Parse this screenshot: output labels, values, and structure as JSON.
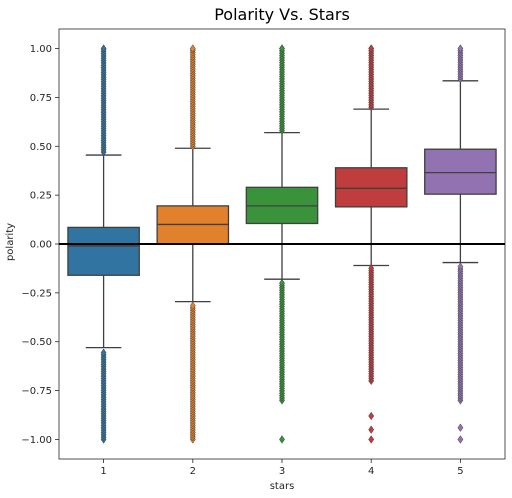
{
  "chart_data": {
    "type": "box",
    "title": "Polarity Vs. Stars",
    "xlabel": "stars",
    "ylabel": "polarity",
    "categories": [
      "1",
      "2",
      "3",
      "4",
      "5"
    ],
    "ylim": [
      -1.1,
      1.1
    ],
    "yticks": [
      -1.0,
      -0.75,
      -0.5,
      -0.25,
      0.0,
      0.25,
      0.5,
      0.75,
      1.0
    ],
    "ytick_labels": [
      "−1.00",
      "−0.75",
      "−0.50",
      "−0.25",
      "0.00",
      "0.25",
      "0.50",
      "0.75",
      "1.00"
    ],
    "reference_line": 0.0,
    "grid": false,
    "boxes": [
      {
        "category": "1",
        "color": "#3274a1",
        "q1": -0.16,
        "median": -0.01,
        "q3": 0.085,
        "whisker_low": -0.53,
        "whisker_high": 0.455,
        "outliers_high_range": [
          0.47,
          1.0
        ],
        "outliers_low_range": [
          -1.0,
          -0.545
        ]
      },
      {
        "category": "2",
        "color": "#e1812c",
        "q1": 0.0,
        "median": 0.1,
        "q3": 0.195,
        "whisker_low": -0.295,
        "whisker_high": 0.49,
        "outliers_high_range": [
          0.5,
          1.0
        ],
        "outliers_low_range": [
          -1.0,
          -0.305
        ]
      },
      {
        "category": "3",
        "color": "#3a923a",
        "q1": 0.105,
        "median": 0.195,
        "q3": 0.29,
        "whisker_low": -0.18,
        "whisker_high": 0.57,
        "outliers_high_range": [
          0.58,
          1.0
        ],
        "outliers_low_range": [
          -0.8,
          -0.19
        ],
        "extra_low_outliers": [
          -1.0
        ]
      },
      {
        "category": "4",
        "color": "#c03d3e",
        "q1": 0.19,
        "median": 0.285,
        "q3": 0.39,
        "whisker_low": -0.11,
        "whisker_high": 0.69,
        "outliers_high_range": [
          0.7,
          1.0
        ],
        "outliers_low_range": [
          -0.7,
          -0.12
        ],
        "extra_low_outliers": [
          -0.88,
          -0.95,
          -1.0
        ]
      },
      {
        "category": "5",
        "color": "#9372b2",
        "q1": 0.255,
        "median": 0.365,
        "q3": 0.485,
        "whisker_low": -0.095,
        "whisker_high": 0.835,
        "outliers_high_range": [
          0.845,
          1.0
        ],
        "outliers_low_range": [
          -0.8,
          -0.105
        ],
        "extra_low_outliers": [
          -0.94,
          -1.0
        ]
      }
    ]
  }
}
